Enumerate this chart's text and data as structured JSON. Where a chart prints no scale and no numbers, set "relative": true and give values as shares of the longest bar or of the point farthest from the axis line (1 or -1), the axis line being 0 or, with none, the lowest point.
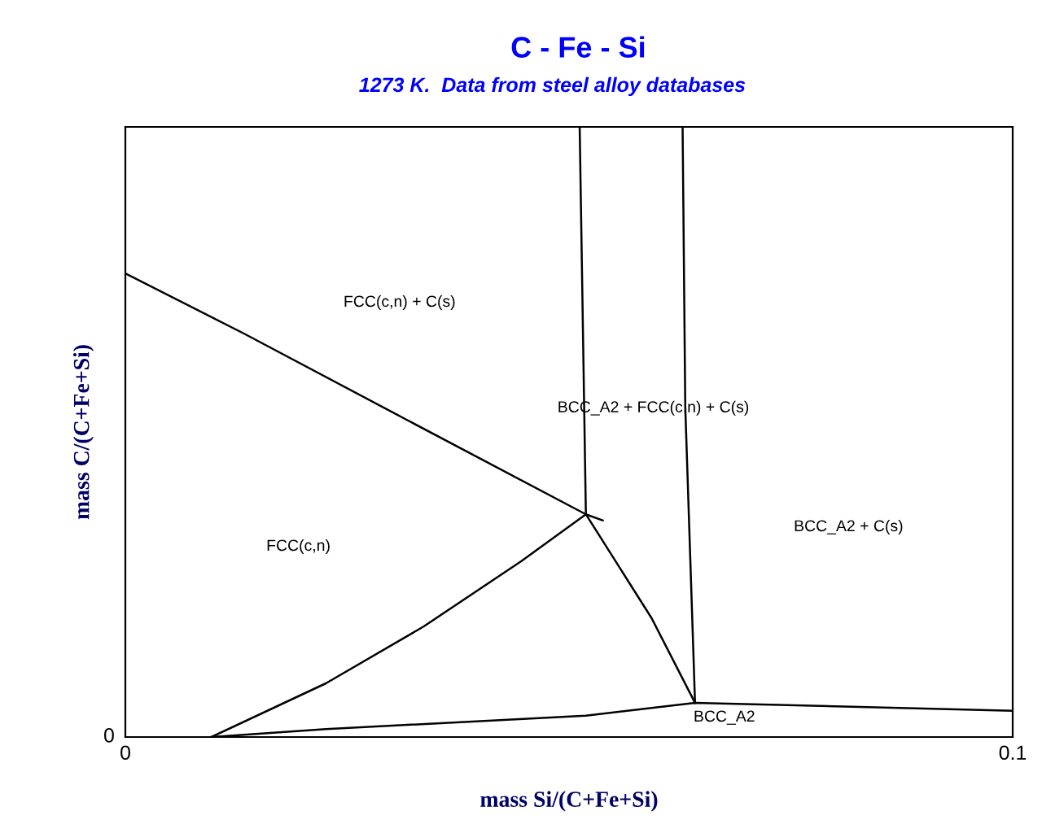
{
  "chart_data": {
    "type": "line",
    "title": "C - Fe - Si",
    "subtitle": "1273 K.  Data from steel alloy databases",
    "xlabel": "mass Si/(C+Fe+Si)",
    "ylabel": "mass C/(C+Fe+Si)",
    "relative": true,
    "xlim": [
      0,
      0.1
    ],
    "xticks": [
      0,
      0.1
    ],
    "grid": false,
    "legend": false,
    "series": [
      {
        "color": "#000000",
        "x": [
          0,
          0.0134,
          0.0317,
          0.0519,
          0.0538
        ],
        "values": [
          0.76,
          0.661,
          0.52,
          0.365,
          0.355
        ]
      },
      {
        "color": "#000000",
        "x": [
          0.0512,
          0.0519
        ],
        "values": [
          1,
          0.365
        ]
      },
      {
        "color": "#000000",
        "x": [
          0.0628,
          0.0631,
          0.0642
        ],
        "values": [
          1,
          0.541,
          0.056
        ]
      },
      {
        "color": "#000000",
        "x": [
          0.0097,
          0.0226,
          0.0336,
          0.0446,
          0.0519
        ],
        "values": [
          0,
          0.088,
          0.181,
          0.288,
          0.365
        ]
      },
      {
        "color": "#000000",
        "x": [
          0.0519,
          0.0593,
          0.0642
        ],
        "values": [
          0.365,
          0.195,
          0.056
        ]
      },
      {
        "color": "#000000",
        "x": [
          0.0097,
          0.0226,
          0.0519,
          0.0642,
          0.1
        ],
        "values": [
          0,
          0.013,
          0.035,
          0.056,
          0.043
        ]
      }
    ],
    "annotations": [
      "FCC(c,n) + C(s)",
      "BCC_A2 + FCC(c,n) + C(s)",
      "BCC_A2 + C(s)",
      "FCC(c,n)",
      "BCC_A2",
      "0"
    ]
  }
}
